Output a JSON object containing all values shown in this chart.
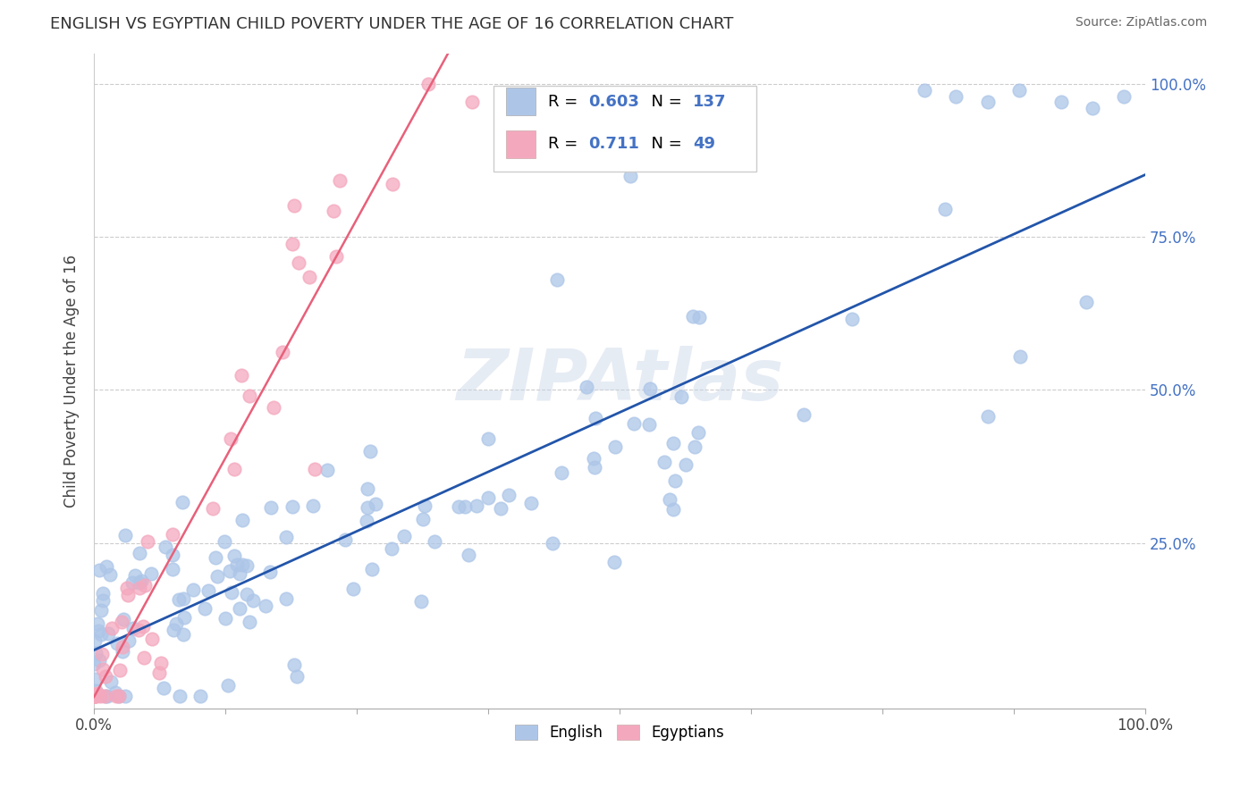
{
  "title": "ENGLISH VS EGYPTIAN CHILD POVERTY UNDER THE AGE OF 16 CORRELATION CHART",
  "source": "Source: ZipAtlas.com",
  "ylabel": "Child Poverty Under the Age of 16",
  "watermark": "ZIPAtlas",
  "english_R": 0.603,
  "english_N": 137,
  "egyptian_R": 0.711,
  "egyptian_N": 49,
  "english_color": "#adc6e8",
  "egyptian_color": "#f4a8be",
  "english_line_color": "#2255aa",
  "egyptian_line_color": "#e8607a",
  "ytick_vals": [
    0.25,
    0.5,
    0.75,
    1.0
  ],
  "ytick_labels": [
    "25.0%",
    "50.0%",
    "75.0%",
    "100.0%"
  ],
  "ytick_color": "#4472c4",
  "xtick_only_labels": [
    "0.0%",
    "100.0%"
  ],
  "legend_color": "#4472c4"
}
